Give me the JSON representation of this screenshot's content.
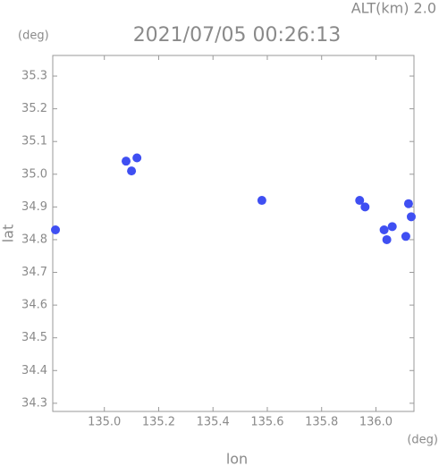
{
  "chart_data": {
    "type": "scatter",
    "title": "2021/07/05 00:26:13",
    "subtitle": "ALT(km) 2.0",
    "y_unit": "(deg)",
    "x_unit": "(deg)",
    "xlabel": "lon",
    "ylabel": "lat",
    "xlim": [
      134.81,
      136.14
    ],
    "ylim": [
      34.275,
      35.363
    ],
    "xticks": [
      {
        "value": 135,
        "label": "135.0"
      },
      135.2,
      135.4,
      135.6,
      135.8,
      {
        "value": 136,
        "label": "136.0"
      }
    ],
    "yticks": [
      34.3,
      34.4,
      34.5,
      34.6,
      34.7,
      34.8,
      34.9,
      {
        "value": 35,
        "label": "35.0"
      },
      35.1,
      35.2,
      35.3
    ],
    "series": [
      {
        "color": "#3f4ff2",
        "x": [
          134.82,
          135.08,
          135.1,
          135.12,
          135.58,
          135.94,
          135.96,
          136.03,
          136.06,
          136.04,
          136.11,
          136.13,
          136.12
        ],
        "y": [
          34.83,
          35.04,
          35.01,
          35.05,
          34.92,
          34.92,
          34.9,
          34.83,
          34.84,
          34.8,
          34.81,
          34.87,
          34.91
        ]
      }
    ]
  }
}
